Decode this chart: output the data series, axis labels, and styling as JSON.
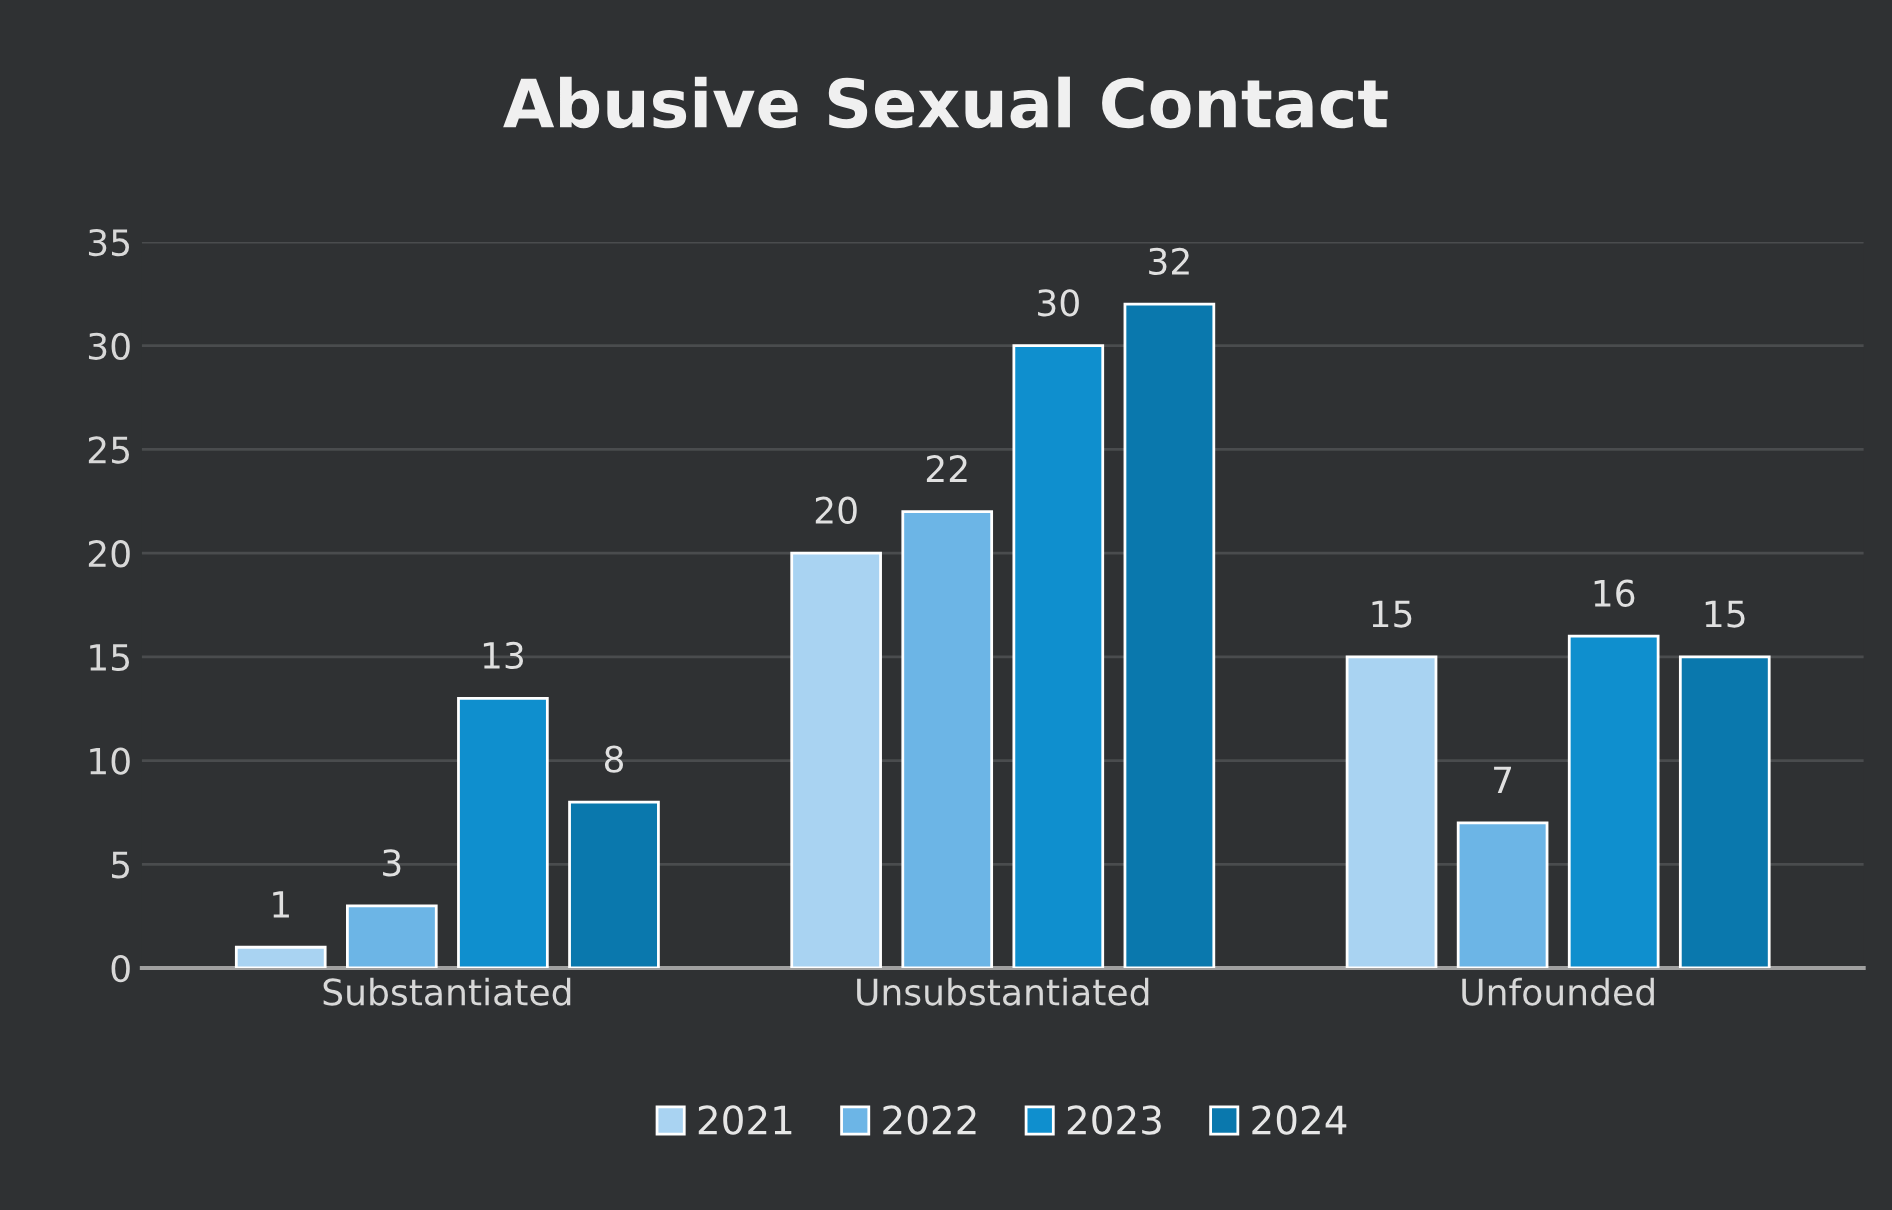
{
  "chart_data": {
    "type": "bar",
    "title": "Abusive Sexual Contact",
    "categories": [
      "Substantiated",
      "Unsubstantiated",
      "Unfounded"
    ],
    "series": [
      {
        "name": "2021",
        "color": "#a9d3f2",
        "values": [
          1,
          20,
          15
        ]
      },
      {
        "name": "2022",
        "color": "#6cb5e6",
        "values": [
          3,
          22,
          7
        ]
      },
      {
        "name": "2023",
        "color": "#0f8fce",
        "values": [
          13,
          30,
          16
        ]
      },
      {
        "name": "2024",
        "color": "#0a78ad",
        "values": [
          8,
          32,
          15
        ]
      }
    ],
    "ylim": [
      0,
      35
    ],
    "yticks": [
      0,
      5,
      10,
      15,
      20,
      25,
      30,
      35
    ],
    "grid": "y",
    "legend": "bottom",
    "data_labels": true
  }
}
